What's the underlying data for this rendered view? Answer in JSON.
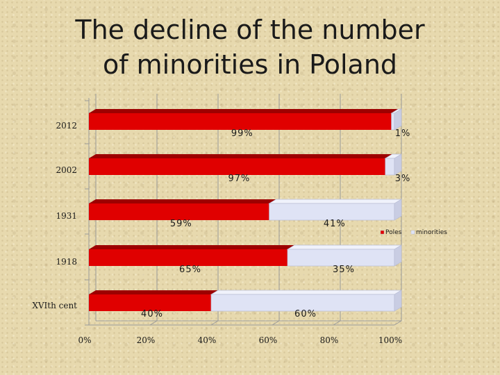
{
  "slide": {
    "title_line1": "The decline of the number",
    "title_line2": "of minorities in Poland"
  },
  "chart_data": {
    "type": "bar",
    "orientation": "horizontal",
    "stacked": true,
    "percent": true,
    "title": "The decline of the number of minorities in Poland",
    "categories": [
      "2012",
      "2002",
      "1931",
      "1918",
      "XVIth cent"
    ],
    "series": [
      {
        "name": "Poles",
        "values": [
          99,
          97,
          59,
          65,
          40
        ],
        "labels": [
          "99%",
          "97%",
          "59%",
          "65%",
          "40%"
        ],
        "color": "#e00000"
      },
      {
        "name": "minorities",
        "values": [
          1,
          3,
          41,
          35,
          60
        ],
        "labels": [
          "1%",
          "3%",
          "41%",
          "35%",
          "60%"
        ],
        "color": "#dfe3f5"
      }
    ],
    "x_ticks": [
      "0%",
      "20%",
      "40%",
      "60%",
      "80%",
      "100%"
    ],
    "xlim": [
      0,
      100
    ],
    "grid": true,
    "legend_position": "right"
  }
}
